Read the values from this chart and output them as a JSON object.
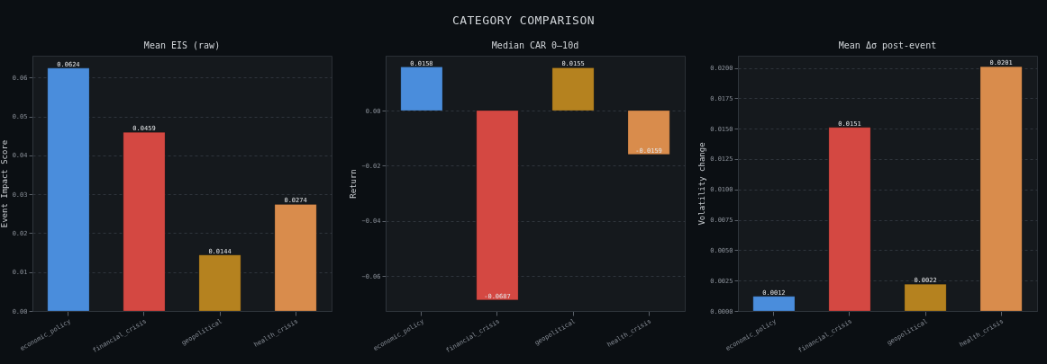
{
  "chart_data": [
    {
      "type": "bar",
      "title": "Mean EIS (raw)",
      "ylabel": "Event Impact Score",
      "annotations": [
        "CATEGORY COMPARISON"
      ],
      "categories": [
        "economic_policy",
        "financial_crisis",
        "geopolitical",
        "health_crisis"
      ],
      "values": [
        0.0624,
        0.0459,
        0.0144,
        0.0274
      ],
      "colors": [
        "#4a8ddc",
        "#d44842",
        "#b5821f",
        "#d98c4c"
      ],
      "ylim": [
        0,
        0.0656
      ],
      "yticks": [
        {
          "value": 0,
          "label": "0.00"
        },
        0.01,
        0.02,
        0.03,
        0.04,
        0.05,
        0.06
      ],
      "grid": "y",
      "data_labels": true
    },
    {
      "type": "bar",
      "title": "Median CAR 0–10d",
      "ylabel": "Return",
      "categories": [
        "economic_policy",
        "financial_crisis",
        "geopolitical",
        "health_crisis"
      ],
      "values": [
        0.0158,
        -0.0687,
        0.0155,
        -0.0159
      ],
      "colors": [
        "#4a8ddc",
        "#d44842",
        "#b5821f",
        "#d98c4c"
      ],
      "ylim": [
        -0.0727,
        0.0199
      ],
      "yticks": [
        {
          "value": 0,
          "label": "0.00"
        },
        {
          "value": -0.02,
          "label": "−0.02"
        },
        {
          "value": -0.04,
          "label": "−0.04"
        },
        {
          "value": -0.06,
          "label": "−0.06"
        }
      ],
      "grid": "y",
      "data_labels": true
    },
    {
      "type": "bar",
      "title": "Mean Δσ post-event",
      "ylabel": "Volatility change",
      "categories": [
        "economic_policy",
        "financial_crisis",
        "geopolitical",
        "health_crisis"
      ],
      "values": [
        0.0012,
        0.0151,
        0.0022,
        0.0201
      ],
      "colors": [
        "#4a8ddc",
        "#d44842",
        "#b5821f",
        "#d98c4c"
      ],
      "ylim": [
        0,
        0.021
      ],
      "yticks": [
        {
          "value": 0,
          "label": "0.0000"
        },
        0.0025,
        {
          "value": 0.005,
          "label": "0.0050"
        },
        0.0075,
        {
          "value": 0.01,
          "label": "0.0100"
        },
        0.0125,
        {
          "value": 0.015,
          "label": "0.0150"
        },
        0.0175,
        {
          "value": 0.02,
          "label": "0.0200"
        }
      ],
      "grid": "y",
      "data_labels": true
    }
  ]
}
